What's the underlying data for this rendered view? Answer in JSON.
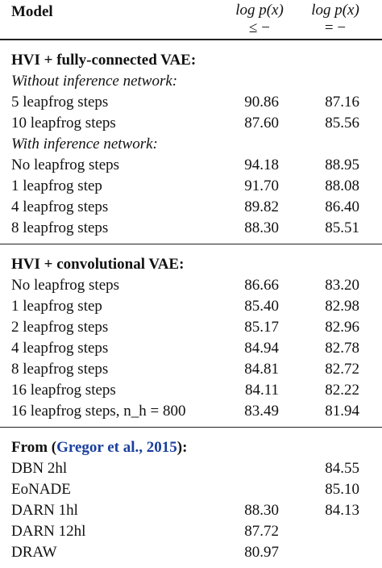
{
  "header": {
    "model": "Model",
    "col1_line1": "log p(x)",
    "col1_line2": "≤ −",
    "col2_line1": "log p(x)",
    "col2_line2": "= −"
  },
  "sections": [
    {
      "title": "HVI + fully-connected VAE:",
      "groups": [
        {
          "subtitle": "Without inference network:",
          "rows": [
            {
              "label": "5 leapfrog steps",
              "v1": "90.86",
              "v2": "87.16"
            },
            {
              "label": "10 leapfrog steps",
              "v1": "87.60",
              "v2": "85.56"
            }
          ]
        },
        {
          "subtitle": "With inference network:",
          "rows": [
            {
              "label": "No leapfrog steps",
              "v1": "94.18",
              "v2": "88.95"
            },
            {
              "label": "1 leapfrog step",
              "v1": "91.70",
              "v2": "88.08"
            },
            {
              "label": "4 leapfrog steps",
              "v1": "89.82",
              "v2": "86.40"
            },
            {
              "label": "8 leapfrog steps",
              "v1": "88.30",
              "v2": "85.51"
            }
          ]
        }
      ]
    },
    {
      "title": "HVI + convolutional VAE:",
      "groups": [
        {
          "subtitle": "",
          "rows": [
            {
              "label": "No leapfrog steps",
              "v1": "86.66",
              "v2": "83.20"
            },
            {
              "label": "1 leapfrog step",
              "v1": "85.40",
              "v2": "82.98"
            },
            {
              "label": "2 leapfrog steps",
              "v1": "85.17",
              "v2": "82.96"
            },
            {
              "label": "4 leapfrog steps",
              "v1": "84.94",
              "v2": "82.78"
            },
            {
              "label": "8 leapfrog steps",
              "v1": "84.81",
              "v2": "82.72"
            },
            {
              "label": "16 leapfrog steps",
              "v1": "84.11",
              "v2": "82.22"
            },
            {
              "label": "16 leapfrog steps, n_h = 800",
              "v1": "83.49",
              "v2": "81.94"
            }
          ]
        }
      ]
    },
    {
      "title_prefix": "From (",
      "title_cite": "Gregor et al., 2015",
      "title_suffix": "):",
      "groups": [
        {
          "subtitle": "",
          "rows": [
            {
              "label": "DBN 2hl",
              "v1": "",
              "v2": "84.55"
            },
            {
              "label": "EoNADE",
              "v1": "",
              "v2": "85.10"
            },
            {
              "label": "DARN 1hl",
              "v1": "88.30",
              "v2": "84.13"
            },
            {
              "label": "DARN 12hl",
              "v1": "87.72",
              "v2": ""
            },
            {
              "label": "DRAW",
              "v1": "80.97",
              "v2": ""
            }
          ]
        }
      ]
    }
  ]
}
